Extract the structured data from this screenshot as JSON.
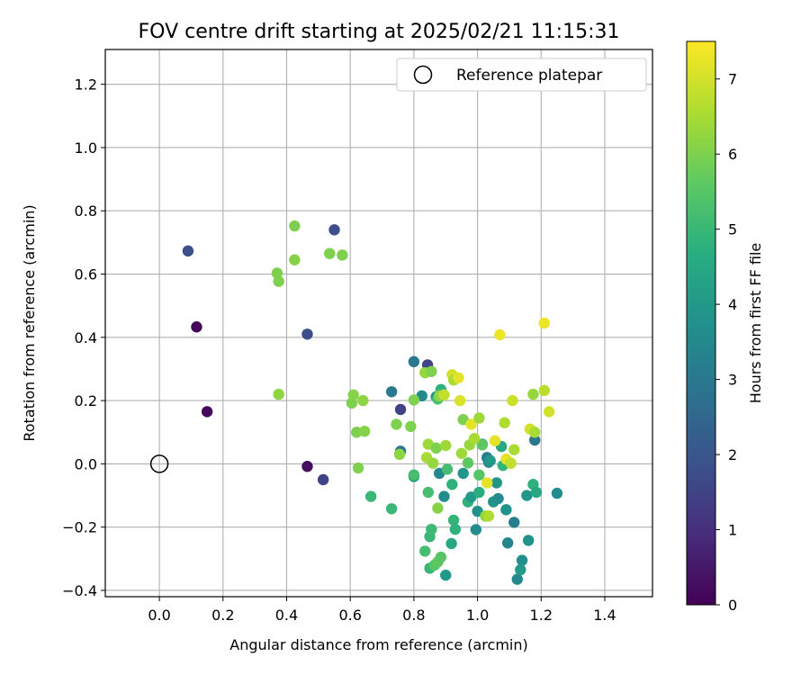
{
  "chart_data": {
    "type": "scatter",
    "title": "FOV centre drift starting at 2025/02/21 11:15:31",
    "xlabel": "Angular distance from reference (arcmin)",
    "ylabel": "Rotation from reference (arcmin)",
    "xlim": [
      -0.17,
      1.55
    ],
    "ylim": [
      -0.42,
      1.31
    ],
    "xticks": [
      0.0,
      0.2,
      0.4,
      0.6,
      0.8,
      1.0,
      1.2,
      1.4
    ],
    "yticks": [
      -0.4,
      -0.2,
      0.0,
      0.2,
      0.4,
      0.6,
      0.8,
      1.0,
      1.2
    ],
    "grid": true,
    "colormap": "viridis",
    "colorbar": {
      "label": "Hours from first FF file",
      "range": [
        0,
        7.5
      ],
      "ticks": [
        0,
        1,
        2,
        3,
        4,
        5,
        6,
        7
      ]
    },
    "legend": {
      "position": "top-right",
      "entries": [
        {
          "label": "Reference platepar",
          "marker": "open-circle"
        }
      ]
    },
    "reference_point": {
      "x": 0.0,
      "y": 0.0
    },
    "points": [
      {
        "x": 0.117,
        "y": 0.433,
        "c": 0.1
      },
      {
        "x": 0.15,
        "y": 0.165,
        "c": 0.2
      },
      {
        "x": 0.465,
        "y": -0.008,
        "c": 0.3
      },
      {
        "x": 0.515,
        "y": -0.05,
        "c": 1.5
      },
      {
        "x": 0.09,
        "y": 0.673,
        "c": 1.8
      },
      {
        "x": 0.55,
        "y": 0.74,
        "c": 1.8
      },
      {
        "x": 0.465,
        "y": 0.41,
        "c": 1.8
      },
      {
        "x": 0.843,
        "y": 0.313,
        "c": 1.5
      },
      {
        "x": 0.758,
        "y": 0.172,
        "c": 1.5
      },
      {
        "x": 0.758,
        "y": 0.04,
        "c": 3.0
      },
      {
        "x": 0.8,
        "y": 0.323,
        "c": 3.0
      },
      {
        "x": 0.73,
        "y": 0.228,
        "c": 3.0
      },
      {
        "x": 0.825,
        "y": 0.215,
        "c": 3.5
      },
      {
        "x": 0.87,
        "y": 0.212,
        "c": 3.8
      },
      {
        "x": 0.885,
        "y": 0.235,
        "c": 4.8
      },
      {
        "x": 0.8,
        "y": -0.04,
        "c": 4.0
      },
      {
        "x": 0.88,
        "y": -0.03,
        "c": 3.5
      },
      {
        "x": 0.895,
        "y": -0.103,
        "c": 3.6
      },
      {
        "x": 0.9,
        "y": -0.352,
        "c": 4.0
      },
      {
        "x": 0.918,
        "y": -0.252,
        "c": 4.5
      },
      {
        "x": 0.92,
        "y": -0.065,
        "c": 4.8
      },
      {
        "x": 0.925,
        "y": -0.178,
        "c": 4.9
      },
      {
        "x": 0.93,
        "y": -0.207,
        "c": 4.8
      },
      {
        "x": 0.955,
        "y": -0.03,
        "c": 3.9
      },
      {
        "x": 0.97,
        "y": -0.12,
        "c": 4.8
      },
      {
        "x": 0.98,
        "y": -0.105,
        "c": 4.0
      },
      {
        "x": 0.995,
        "y": -0.208,
        "c": 3.6
      },
      {
        "x": 1.0,
        "y": -0.15,
        "c": 3.8
      },
      {
        "x": 1.005,
        "y": -0.09,
        "c": 4.7
      },
      {
        "x": 1.015,
        "y": 0.062,
        "c": 4.0
      },
      {
        "x": 1.03,
        "y": 0.02,
        "c": 3.2
      },
      {
        "x": 1.035,
        "y": 0.005,
        "c": 3.5
      },
      {
        "x": 1.04,
        "y": 0.01,
        "c": 4.0
      },
      {
        "x": 1.05,
        "y": -0.12,
        "c": 3.8
      },
      {
        "x": 1.06,
        "y": -0.06,
        "c": 3.9
      },
      {
        "x": 1.065,
        "y": -0.11,
        "c": 3.6
      },
      {
        "x": 1.075,
        "y": 0.055,
        "c": 4.5
      },
      {
        "x": 1.08,
        "y": -0.005,
        "c": 4.9
      },
      {
        "x": 1.09,
        "y": -0.145,
        "c": 3.8
      },
      {
        "x": 1.095,
        "y": -0.25,
        "c": 3.4
      },
      {
        "x": 1.115,
        "y": -0.185,
        "c": 3.2
      },
      {
        "x": 1.125,
        "y": -0.365,
        "c": 3.5
      },
      {
        "x": 1.135,
        "y": -0.335,
        "c": 4.0
      },
      {
        "x": 1.14,
        "y": -0.305,
        "c": 3.7
      },
      {
        "x": 1.155,
        "y": -0.1,
        "c": 3.9
      },
      {
        "x": 1.16,
        "y": -0.242,
        "c": 3.8
      },
      {
        "x": 1.175,
        "y": -0.065,
        "c": 4.8
      },
      {
        "x": 1.18,
        "y": 0.075,
        "c": 3.0
      },
      {
        "x": 1.185,
        "y": -0.09,
        "c": 4.5
      },
      {
        "x": 1.25,
        "y": -0.093,
        "c": 3.6
      },
      {
        "x": 0.665,
        "y": -0.103,
        "c": 5.0
      },
      {
        "x": 0.73,
        "y": -0.142,
        "c": 5.0
      },
      {
        "x": 0.8,
        "y": -0.035,
        "c": 5.2
      },
      {
        "x": 0.835,
        "y": -0.276,
        "c": 5.2
      },
      {
        "x": 0.845,
        "y": -0.09,
        "c": 5.2
      },
      {
        "x": 0.85,
        "y": -0.33,
        "c": 5.0
      },
      {
        "x": 0.85,
        "y": -0.23,
        "c": 5.0
      },
      {
        "x": 0.855,
        "y": -0.207,
        "c": 5.1
      },
      {
        "x": 0.865,
        "y": -0.32,
        "c": 5.5
      },
      {
        "x": 0.875,
        "y": -0.31,
        "c": 5.6
      },
      {
        "x": 0.885,
        "y": -0.295,
        "c": 5.5
      },
      {
        "x": 0.875,
        "y": 0.205,
        "c": 5.3
      },
      {
        "x": 0.905,
        "y": -0.017,
        "c": 5.2
      },
      {
        "x": 0.97,
        "y": 0.003,
        "c": 5.6
      },
      {
        "x": 1.005,
        "y": -0.035,
        "c": 5.5
      },
      {
        "x": 1.015,
        "y": 0.06,
        "c": 5.6
      },
      {
        "x": 0.37,
        "y": 0.603,
        "c": 6.0
      },
      {
        "x": 0.375,
        "y": 0.577,
        "c": 6.0
      },
      {
        "x": 0.375,
        "y": 0.22,
        "c": 6.2
      },
      {
        "x": 0.425,
        "y": 0.752,
        "c": 6.0
      },
      {
        "x": 0.425,
        "y": 0.645,
        "c": 6.1
      },
      {
        "x": 0.535,
        "y": 0.665,
        "c": 6.0
      },
      {
        "x": 0.575,
        "y": 0.66,
        "c": 6.0
      },
      {
        "x": 0.605,
        "y": 0.192,
        "c": 6.0
      },
      {
        "x": 0.61,
        "y": 0.218,
        "c": 6.1
      },
      {
        "x": 0.62,
        "y": 0.1,
        "c": 6.0
      },
      {
        "x": 0.625,
        "y": -0.013,
        "c": 6.0
      },
      {
        "x": 0.64,
        "y": 0.2,
        "c": 6.2
      },
      {
        "x": 0.645,
        "y": 0.103,
        "c": 6.1
      },
      {
        "x": 0.745,
        "y": 0.125,
        "c": 6.0
      },
      {
        "x": 0.755,
        "y": 0.03,
        "c": 6.2
      },
      {
        "x": 0.79,
        "y": 0.118,
        "c": 6.0
      },
      {
        "x": 0.8,
        "y": 0.202,
        "c": 6.0
      },
      {
        "x": 0.835,
        "y": 0.288,
        "c": 6.3
      },
      {
        "x": 0.84,
        "y": 0.02,
        "c": 6.5
      },
      {
        "x": 0.845,
        "y": 0.062,
        "c": 6.4
      },
      {
        "x": 0.855,
        "y": 0.292,
        "c": 6.0
      },
      {
        "x": 0.86,
        "y": 0.002,
        "c": 6.3
      },
      {
        "x": 0.87,
        "y": 0.05,
        "c": 6.0
      },
      {
        "x": 0.875,
        "y": -0.14,
        "c": 6.1
      },
      {
        "x": 0.88,
        "y": 0.215,
        "c": 6.2
      },
      {
        "x": 0.895,
        "y": 0.218,
        "c": 6.8
      },
      {
        "x": 0.9,
        "y": 0.058,
        "c": 6.4
      },
      {
        "x": 0.92,
        "y": 0.282,
        "c": 7.0
      },
      {
        "x": 0.925,
        "y": 0.265,
        "c": 6.5
      },
      {
        "x": 0.94,
        "y": 0.272,
        "c": 7.2
      },
      {
        "x": 0.945,
        "y": 0.2,
        "c": 7.1
      },
      {
        "x": 0.95,
        "y": 0.033,
        "c": 6.4
      },
      {
        "x": 0.955,
        "y": 0.14,
        "c": 6.0
      },
      {
        "x": 0.975,
        "y": 0.06,
        "c": 6.3
      },
      {
        "x": 0.98,
        "y": 0.125,
        "c": 7.2
      },
      {
        "x": 0.99,
        "y": 0.08,
        "c": 6.5
      },
      {
        "x": 1.005,
        "y": 0.145,
        "c": 6.4
      },
      {
        "x": 1.025,
        "y": -0.165,
        "c": 6.2
      },
      {
        "x": 1.03,
        "y": -0.06,
        "c": 7.2
      },
      {
        "x": 1.035,
        "y": -0.165,
        "c": 6.6
      },
      {
        "x": 1.055,
        "y": 0.073,
        "c": 7.2
      },
      {
        "x": 1.07,
        "y": 0.408,
        "c": 7.3
      },
      {
        "x": 1.085,
        "y": 0.13,
        "c": 6.6
      },
      {
        "x": 1.09,
        "y": 0.015,
        "c": 7.2
      },
      {
        "x": 1.105,
        "y": 0.002,
        "c": 6.8
      },
      {
        "x": 1.11,
        "y": 0.2,
        "c": 6.9
      },
      {
        "x": 1.115,
        "y": 0.045,
        "c": 6.5
      },
      {
        "x": 1.165,
        "y": 0.11,
        "c": 7.0
      },
      {
        "x": 1.175,
        "y": 0.22,
        "c": 6.3
      },
      {
        "x": 1.18,
        "y": 0.1,
        "c": 6.5
      },
      {
        "x": 1.21,
        "y": 0.445,
        "c": 7.3
      },
      {
        "x": 1.21,
        "y": 0.232,
        "c": 6.7
      },
      {
        "x": 1.225,
        "y": 0.165,
        "c": 7.0
      }
    ]
  }
}
